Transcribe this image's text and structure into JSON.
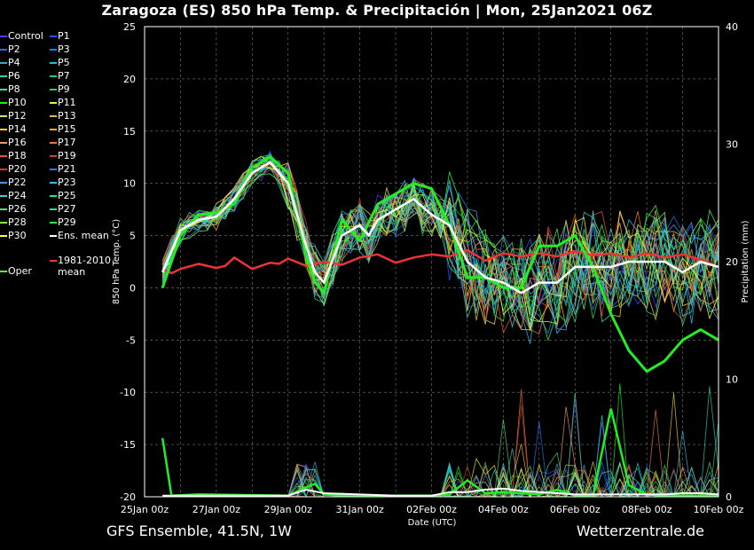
{
  "header": {
    "title": "Zaragoza  (ES)  850 hPa Temp. & Precipitación | Mon, 25Jan2021 06Z"
  },
  "footer": {
    "left": "GFS Ensemble, 41.5N, 1W",
    "right": "Wetterzentrale.de"
  },
  "legend": [
    {
      "label": "Control",
      "color": "#4444ff"
    },
    {
      "label": "P1",
      "color": "#2255ff"
    },
    {
      "label": "P2",
      "color": "#3366dd"
    },
    {
      "label": "P3",
      "color": "#1f7bff"
    },
    {
      "label": "P4",
      "color": "#33aacc"
    },
    {
      "label": "P5",
      "color": "#22bbdd"
    },
    {
      "label": "P6",
      "color": "#33ccbb"
    },
    {
      "label": "P7",
      "color": "#22cc99"
    },
    {
      "label": "P8",
      "color": "#44dd88"
    },
    {
      "label": "P9",
      "color": "#33cc55"
    },
    {
      "label": "P10",
      "color": "#22ee22"
    },
    {
      "label": "P11",
      "color": "#eeee33"
    },
    {
      "label": "P12",
      "color": "#dddd66"
    },
    {
      "label": "P13",
      "color": "#ddbb44"
    },
    {
      "label": "P14",
      "color": "#eecc33"
    },
    {
      "label": "P15",
      "color": "#ffaa22"
    },
    {
      "label": "P16",
      "color": "#ee9966"
    },
    {
      "label": "P17",
      "color": "#ee7744"
    },
    {
      "label": "P18",
      "color": "#dd5533"
    },
    {
      "label": "P19",
      "color": "#cc4422"
    },
    {
      "label": "P20",
      "color": "#ee3333"
    },
    {
      "label": "P21",
      "color": "#3377ee"
    },
    {
      "label": "P22",
      "color": "#4499ee"
    },
    {
      "label": "P23",
      "color": "#33bbee"
    },
    {
      "label": "P24",
      "color": "#44ccdd"
    },
    {
      "label": "P25",
      "color": "#22ddbb"
    },
    {
      "label": "P26",
      "color": "#55dd66"
    },
    {
      "label": "P27",
      "color": "#33dd99"
    },
    {
      "label": "P28",
      "color": "#88ee44"
    },
    {
      "label": "P29",
      "color": "#33ee33"
    },
    {
      "label": "P30",
      "color": "#ffff44"
    },
    {
      "label": "Ens. mean",
      "color": "#ffffff"
    },
    {
      "label": "Oper",
      "color": "#66ff44"
    },
    {
      "label": "1981-2010",
      "label2": "mean",
      "color": "#ee3333"
    }
  ],
  "chart_data": {
    "type": "line",
    "title": "Zaragoza  (ES)  850 hPa Temp. & Precipitación | Mon, 25Jan2021 06Z",
    "xlabel": "Date (UTC)",
    "ylabel": "850 hPa Temp. (°C)",
    "y2label": "Precipitation (mm)",
    "xticks": [
      "25Jan 00z",
      "27Jan 00z",
      "29Jan 00z",
      "31Jan 00z",
      "02Feb 00z",
      "04Feb 00z",
      "06Feb 00z",
      "08Feb 00z",
      "10Feb 00z"
    ],
    "yticks": [
      "25",
      "20",
      "15",
      "10",
      "5",
      "0",
      "-5",
      "-10",
      "-15",
      "-20"
    ],
    "y2ticks": [
      "40",
      "30",
      "20",
      "10",
      "0"
    ],
    "xlim_hours": [
      0,
      384
    ],
    "ylim": [
      -20,
      25
    ],
    "y2lim": [
      0,
      40
    ],
    "grid": true,
    "series": [
      {
        "name": "Ens. mean",
        "color": "#ffffff",
        "width": 2.5,
        "x_hours": [
          12,
          24,
          36,
          48,
          60,
          72,
          84,
          96,
          108,
          114,
          120,
          132,
          144,
          150,
          156,
          168,
          180,
          192,
          204,
          216,
          228,
          240,
          252,
          264,
          276,
          288,
          300,
          312,
          324,
          336,
          348,
          360,
          372,
          384
        ],
        "values": [
          1.5,
          5.5,
          6.5,
          6.8,
          8.5,
          11.0,
          12.0,
          10.0,
          4.0,
          1.5,
          0.5,
          5.0,
          6.0,
          5.0,
          6.5,
          7.5,
          8.5,
          7.0,
          6.0,
          2.5,
          1.0,
          0.5,
          -0.5,
          0.5,
          0.5,
          2.0,
          2.0,
          2.0,
          2.5,
          2.5,
          2.5,
          1.5,
          2.5,
          2.0
        ]
      },
      {
        "name": "Oper",
        "color": "#22ee22",
        "width": 3,
        "x_hours": [
          12,
          24,
          36,
          48,
          60,
          72,
          84,
          96,
          108,
          114,
          120,
          132,
          144,
          156,
          168,
          180,
          192,
          204,
          216,
          228,
          240,
          252,
          264,
          276,
          288,
          300,
          312,
          324,
          336,
          348,
          360,
          372,
          384
        ],
        "values": [
          0.0,
          5.0,
          7.0,
          7.2,
          8.0,
          11.5,
          12.5,
          11.0,
          3.0,
          0.5,
          -0.5,
          6.5,
          4.5,
          8.0,
          9.0,
          10.0,
          9.5,
          6.0,
          1.0,
          1.0,
          0.0,
          0.0,
          4.0,
          4.0,
          5.0,
          2.0,
          -2.5,
          -6.0,
          -8.0,
          -7.0,
          -5.0,
          -4.0,
          -5.0
        ]
      },
      {
        "name": "1981-2010",
        "color": "#ee3333",
        "width": 2.5,
        "x_hours": [
          12,
          18,
          24,
          36,
          48,
          54,
          60,
          72,
          84,
          90,
          96,
          108,
          120,
          132,
          144,
          156,
          168,
          180,
          192,
          204,
          216,
          228,
          240,
          252,
          264,
          276,
          288,
          300,
          312,
          324,
          336,
          348,
          360,
          372,
          384
        ],
        "values": [
          1.8,
          1.4,
          1.8,
          2.3,
          1.9,
          2.1,
          2.9,
          1.8,
          2.4,
          2.3,
          2.8,
          2.1,
          2.5,
          2.2,
          2.9,
          3.2,
          2.4,
          2.9,
          3.2,
          3.0,
          3.6,
          2.6,
          3.3,
          3.0,
          3.3,
          3.0,
          3.5,
          3.1,
          3.3,
          2.9,
          3.3,
          2.9,
          3.2,
          2.7,
          2.0
        ]
      }
    ],
    "precipitation": [
      {
        "name": "Oper",
        "unit": "mm",
        "x_hours": [
          12,
          18,
          36,
          96,
          108,
          114,
          120,
          132,
          144,
          156,
          168,
          180,
          192,
          204,
          216,
          228,
          240,
          252,
          264,
          276,
          288,
          300,
          312,
          324,
          336,
          348,
          360,
          372,
          384
        ],
        "values": [
          5.0,
          0.1,
          0.2,
          0.1,
          0.8,
          1.1,
          0.2,
          0.1,
          0.1,
          0.1,
          0.1,
          0.1,
          0.1,
          0.2,
          1.4,
          0.3,
          0.4,
          0.3,
          0.2,
          0.6,
          0.1,
          0.1,
          7.5,
          1.0,
          0.2,
          0.1,
          0.1,
          0.1,
          0.1
        ]
      },
      {
        "name": "Ens. mean",
        "unit": "mm",
        "x_hours": [
          12,
          96,
          108,
          120,
          144,
          168,
          192,
          204,
          216,
          228,
          240,
          252,
          264,
          276,
          288,
          300,
          312,
          324,
          336,
          348,
          360,
          372,
          384
        ],
        "values": [
          0.1,
          0.1,
          0.6,
          0.3,
          0.2,
          0.1,
          0.1,
          0.4,
          0.4,
          0.6,
          0.7,
          0.5,
          0.4,
          0.3,
          0.2,
          0.2,
          0.2,
          0.2,
          0.2,
          0.2,
          0.3,
          0.3,
          0.2
        ]
      }
    ]
  }
}
